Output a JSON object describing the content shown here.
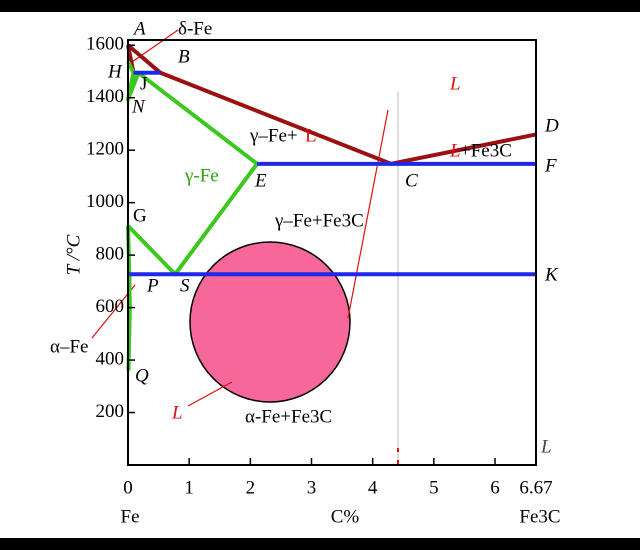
{
  "chart_data": {
    "type": "line",
    "xlabel": "C%",
    "ylabel": "T /°C",
    "x_left_label": "Fe",
    "x_right_label": "Fe3C",
    "xlim": [
      0,
      6.67
    ],
    "ylim": [
      0,
      1620
    ],
    "xticks": [
      0,
      1,
      2,
      3,
      4,
      5,
      6,
      6.67
    ],
    "yticks": [
      200,
      400,
      600,
      800,
      1000,
      1200,
      1400,
      1600
    ],
    "series": [
      {
        "color": "#9b1010",
        "x": [
          0,
          0.53,
          4.3,
          6.67
        ],
        "values": [
          1600,
          1495,
          1148,
          1260
        ]
      },
      {
        "color": "#9b1010",
        "x": [
          0,
          0.09
        ],
        "values": [
          1600,
          1495
        ]
      },
      {
        "color": "#3cc81e",
        "x": [
          0,
          0.09,
          0,
          0.17,
          2.11,
          0.77,
          0
        ],
        "values": [
          1538,
          1495,
          1394,
          1495,
          1148,
          727,
          912
        ]
      },
      {
        "color": "#3cc81e",
        "x": [
          0,
          0.0218,
          0.03,
          0.008
        ],
        "values": [
          912,
          727,
          600,
          360
        ]
      },
      {
        "color": "#1e28e6",
        "x": [
          0.09,
          0.53
        ],
        "values": [
          1495,
          1495
        ]
      },
      {
        "color": "#1e28e6",
        "x": [
          2.11,
          6.67
        ],
        "values": [
          1148,
          1148
        ]
      },
      {
        "color": "#1e28e6",
        "x": [
          0.0218,
          6.67
        ],
        "values": [
          727,
          727
        ]
      }
    ],
    "annotations": [
      {
        "text": "A",
        "italic": true
      },
      {
        "text": "δ-Fe"
      },
      {
        "text": "B",
        "italic": true
      },
      {
        "text": "H",
        "italic": true
      },
      {
        "text": "J"
      },
      {
        "text": "N",
        "italic": true
      },
      {
        "text": "L",
        "color": "#e01010",
        "italic": true
      },
      {
        "text": "D",
        "italic": true
      },
      {
        "text": "γ–Fe+"
      },
      {
        "text": "L",
        "color": "#e01010"
      },
      {
        "text": "L",
        "color": "#e01010",
        "italic": true
      },
      {
        "text": "+Fe3C"
      },
      {
        "text": "F",
        "italic": true
      },
      {
        "text": "γ-Fe",
        "color": "#2ca010"
      },
      {
        "text": "E",
        "italic": true
      },
      {
        "text": "C",
        "italic": true
      },
      {
        "text": "G"
      },
      {
        "text": "γ–Fe+Fe3C"
      },
      {
        "text": "K",
        "italic": true
      },
      {
        "text": "P",
        "italic": true
      },
      {
        "text": "S",
        "italic": true
      },
      {
        "text": "α–Fe"
      },
      {
        "text": "Q",
        "italic": true
      },
      {
        "text": "L",
        "color": "#e01010",
        "italic": true
      },
      {
        "text": "α-Fe+Fe3C"
      },
      {
        "text": "L",
        "color": "#444",
        "italic": true
      }
    ]
  }
}
